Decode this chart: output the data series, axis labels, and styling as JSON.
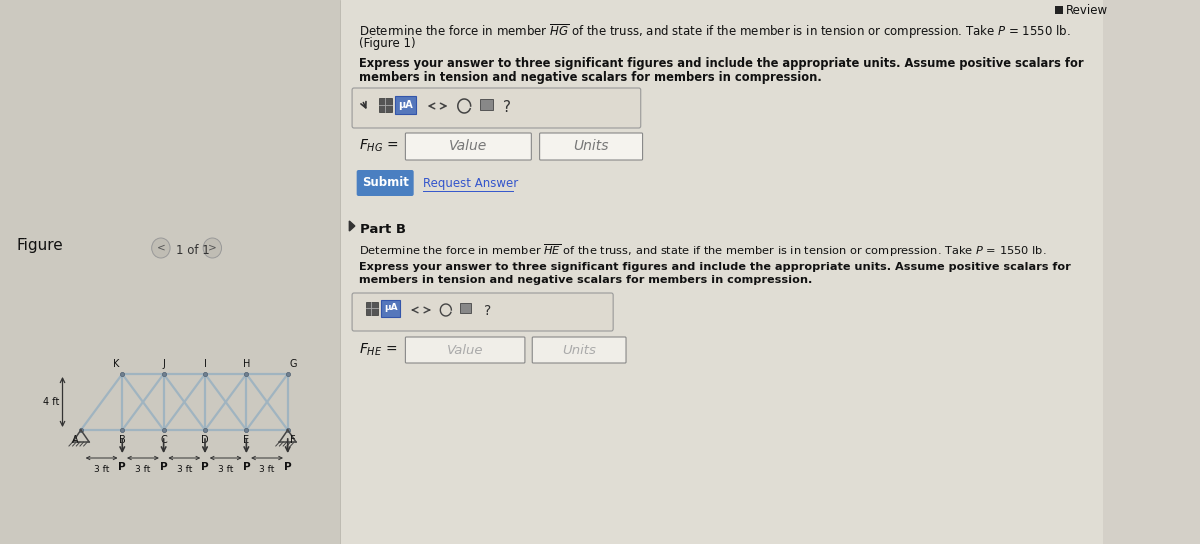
{
  "bg_color": "#d4d0c8",
  "right_panel_bg": "#e0ddd4",
  "left_panel_bg": "#ccc9c0",
  "review_text": "Review",
  "part_a_line1a": "Determine the force in member ",
  "part_a_hg": "HG",
  "part_a_line1b": " of the truss, and state if the member is in tension or compression. Take ",
  "part_a_p": "P",
  "part_a_val": " = 1550 lb.",
  "part_a_fig": "(Figure 1)",
  "express_line1": "Express your answer to three significant figures and include the appropriate units. Assume positive scalars for",
  "express_line2": "members in tension and negative scalars for members in compression.",
  "placeholder_value": "Value",
  "placeholder_units": "Units",
  "submit_text": "Submit",
  "request_answer_text": "Request Answer",
  "part_b_label": "Part B",
  "part_b_line1a": "Determine the force in member ",
  "part_b_he": "HE",
  "part_b_line1b": " of the truss, and state if the member is in tension or compression. Take ",
  "part_b_p": "P",
  "part_b_val": " = 1550 lb.",
  "part_b_express1": "Express your answer to three significant figures and include the appropriate units. Assume positive scalars for",
  "part_b_express2": "members in tension and negative scalars for members in compression.",
  "figure_label": "Figure",
  "nav_text": "1 of 1",
  "submit_btn_color": "#4a7fc1",
  "height_label": "4 ft",
  "spacing": "3 ft",
  "node_labels_top": [
    "K",
    "J",
    "I",
    "H",
    "G"
  ],
  "node_labels_bot": [
    "A",
    "B",
    "C",
    "D",
    "E",
    "F"
  ],
  "load_label": "P",
  "truss_color": "#a0b4c0",
  "truss_lw": 1.6
}
